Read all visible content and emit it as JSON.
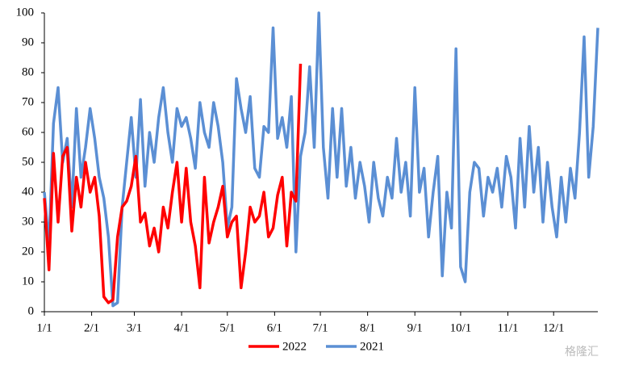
{
  "chart_data": {
    "type": "line",
    "x": [
      0,
      3,
      6,
      9,
      12,
      15,
      18,
      21,
      24,
      27,
      30,
      33,
      36,
      39,
      42,
      45,
      48,
      51,
      54,
      57,
      60,
      63,
      66,
      69,
      72,
      75,
      78,
      81,
      84,
      87,
      90,
      93,
      96,
      99,
      102,
      105,
      108,
      111,
      114,
      117,
      120,
      123,
      126,
      129,
      132,
      135,
      138,
      141,
      144,
      147,
      150,
      153,
      156,
      159,
      162,
      165,
      168,
      171,
      174,
      177,
      180,
      183,
      186,
      189,
      192,
      195,
      198,
      201,
      204,
      207,
      210,
      213,
      216,
      219,
      222,
      225,
      228,
      231,
      234,
      237,
      240,
      243,
      246,
      249,
      252,
      255,
      258,
      261,
      264,
      267,
      270,
      273,
      276,
      279,
      282,
      285,
      288,
      291,
      294,
      297,
      300,
      303,
      306,
      309,
      312,
      315,
      318,
      321,
      324,
      327,
      330,
      333,
      336,
      339,
      342,
      345,
      348,
      351,
      354,
      357,
      360,
      363
    ],
    "xlim": [
      0,
      363
    ],
    "xticks": [
      {
        "value": 0,
        "label": "1/1"
      },
      {
        "value": 31,
        "label": "2/1"
      },
      {
        "value": 59,
        "label": "3/1"
      },
      {
        "value": 90,
        "label": "4/1"
      },
      {
        "value": 120,
        "label": "5/1"
      },
      {
        "value": 151,
        "label": "6/1"
      },
      {
        "value": 181,
        "label": "7/1"
      },
      {
        "value": 212,
        "label": "8/1"
      },
      {
        "value": 243,
        "label": "9/1"
      },
      {
        "value": 273,
        "label": "10/1"
      },
      {
        "value": 304,
        "label": "11/1"
      },
      {
        "value": 334,
        "label": "12/1"
      }
    ],
    "ylim": [
      0,
      100
    ],
    "yticks": [
      0,
      10,
      20,
      30,
      40,
      50,
      60,
      70,
      80,
      90,
      100
    ],
    "grid": false,
    "legend": "bottom",
    "series": [
      {
        "name": "2022",
        "color": "#ff0000",
        "values": [
          38,
          14,
          53,
          30,
          52,
          55,
          27,
          45,
          35,
          50,
          40,
          45,
          32,
          5,
          3,
          4,
          25,
          35,
          37,
          42,
          52,
          30,
          33,
          22,
          28,
          20,
          35,
          28,
          40,
          50,
          30,
          48,
          30,
          22,
          8,
          45,
          23,
          30,
          35,
          42,
          25,
          30,
          32,
          8,
          20,
          35,
          30,
          32,
          40,
          25,
          28,
          39,
          45,
          22,
          40,
          37,
          83,
          null,
          null,
          null,
          null,
          null,
          null,
          null,
          null,
          null,
          null,
          null,
          null,
          null,
          null,
          null,
          null,
          null,
          null,
          null,
          null,
          null,
          null,
          null,
          null,
          null,
          null,
          null,
          null,
          null,
          null,
          null,
          null,
          null,
          null,
          null,
          null,
          null,
          null,
          null,
          null,
          null,
          null,
          null,
          null,
          null,
          null,
          null,
          null,
          null,
          null,
          null,
          null,
          null,
          null,
          null,
          null,
          null,
          null,
          null,
          null,
          null,
          null,
          null,
          null,
          null
        ]
      },
      {
        "name": "2021",
        "color": "#5b8fd4",
        "values": [
          40,
          22,
          63,
          75,
          50,
          58,
          35,
          68,
          45,
          55,
          68,
          58,
          45,
          38,
          25,
          2,
          3,
          35,
          50,
          65,
          45,
          71,
          42,
          60,
          50,
          65,
          75,
          60,
          50,
          68,
          62,
          65,
          58,
          48,
          70,
          60,
          55,
          70,
          62,
          50,
          28,
          35,
          78,
          68,
          60,
          72,
          48,
          45,
          62,
          60,
          95,
          58,
          65,
          55,
          72,
          20,
          52,
          60,
          82,
          55,
          100,
          55,
          38,
          68,
          45,
          68,
          42,
          55,
          38,
          50,
          42,
          30,
          50,
          38,
          32,
          45,
          38,
          58,
          40,
          50,
          32,
          75,
          40,
          48,
          25,
          40,
          52,
          12,
          40,
          28,
          88,
          15,
          10,
          40,
          50,
          48,
          32,
          45,
          40,
          48,
          35,
          52,
          45,
          28,
          58,
          35,
          62,
          40,
          55,
          30,
          50,
          35,
          25,
          45,
          30,
          48,
          38,
          60,
          92,
          45,
          62,
          95
        ]
      }
    ],
    "watermark": "格隆汇"
  }
}
